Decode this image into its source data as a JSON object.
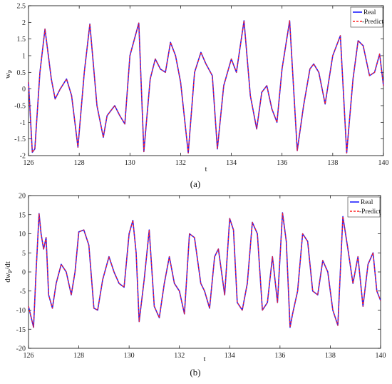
{
  "chart_data": [
    {
      "type": "line",
      "xlabel": "t",
      "ylabel": "w",
      "ylabel_sub": "P",
      "caption": "(a)",
      "xlim": [
        126,
        140
      ],
      "ylim": [
        -2,
        2.5
      ],
      "xticks": [
        "126",
        "128",
        "130",
        "132",
        "134",
        "136",
        "138",
        "140"
      ],
      "yticks": [
        "-2",
        "-1.5",
        "-1",
        "-0.5",
        "0",
        "0.5",
        "1",
        "1.5",
        "2",
        "2.5"
      ],
      "legend_position": "top-right",
      "series": [
        {
          "name": "Real",
          "color": "#1f1fff",
          "dash": "solid"
        },
        {
          "name": "-Predict",
          "color": "#ff2020",
          "dash": "dashed"
        }
      ],
      "x": [
        126.0,
        126.15,
        126.25,
        126.45,
        126.65,
        126.9,
        127.05,
        127.25,
        127.5,
        127.7,
        127.95,
        128.2,
        128.42,
        128.7,
        128.95,
        129.1,
        129.4,
        129.6,
        129.8,
        130.0,
        130.35,
        130.55,
        130.8,
        131.0,
        131.2,
        131.4,
        131.6,
        131.8,
        132.0,
        132.3,
        132.55,
        132.8,
        133.0,
        133.25,
        133.45,
        133.7,
        134.0,
        134.2,
        134.5,
        134.75,
        135.0,
        135.2,
        135.4,
        135.6,
        135.8,
        136.0,
        136.3,
        136.6,
        136.85,
        137.1,
        137.25,
        137.45,
        137.7,
        138.0,
        138.3,
        138.55,
        138.8,
        139.0,
        139.2,
        139.45,
        139.65,
        139.85,
        140.0
      ],
      "y": [
        0.2,
        -1.9,
        -1.8,
        0.5,
        1.8,
        0.3,
        -0.3,
        0.0,
        0.3,
        -0.2,
        -1.75,
        0.5,
        1.95,
        -0.5,
        -1.45,
        -0.8,
        -0.5,
        -0.8,
        -1.05,
        1.0,
        1.98,
        -1.88,
        0.3,
        0.9,
        0.6,
        0.5,
        1.4,
        1.0,
        0.2,
        -1.92,
        0.5,
        1.1,
        0.75,
        0.4,
        -1.8,
        0.1,
        0.9,
        0.5,
        2.05,
        -0.2,
        -1.2,
        -0.1,
        0.1,
        -0.6,
        -1.0,
        0.6,
        2.05,
        -1.85,
        -0.5,
        0.6,
        0.75,
        0.5,
        -0.45,
        1.0,
        1.6,
        -1.92,
        0.3,
        1.45,
        1.3,
        0.4,
        0.5,
        1.05,
        0.1
      ]
    },
    {
      "type": "line",
      "xlabel": "t",
      "ylabel": "dw",
      "ylabel_sub": "P",
      "ylabel_suffix": "/dt",
      "caption": "(b)",
      "xlim": [
        126,
        140
      ],
      "ylim": [
        -20,
        20
      ],
      "xticks": [
        "126",
        "128",
        "130",
        "132",
        "134",
        "136",
        "138",
        "140"
      ],
      "yticks": [
        "-20",
        "-15",
        "-10",
        "-5",
        "0",
        "5",
        "10",
        "15",
        "20"
      ],
      "legend_position": "top-right",
      "series": [
        {
          "name": "Real",
          "color": "#1f1fff",
          "dash": "solid"
        },
        {
          "name": "-Predict",
          "color": "#ff2020",
          "dash": "dashed"
        }
      ],
      "x": [
        126.0,
        126.2,
        126.3,
        126.42,
        126.5,
        126.6,
        126.7,
        126.8,
        126.95,
        127.1,
        127.3,
        127.5,
        127.7,
        127.85,
        128.0,
        128.2,
        128.4,
        128.6,
        128.75,
        128.95,
        129.2,
        129.4,
        129.6,
        129.8,
        130.0,
        130.15,
        130.28,
        130.4,
        130.6,
        130.8,
        131.0,
        131.2,
        131.4,
        131.6,
        131.8,
        132.0,
        132.2,
        132.4,
        132.6,
        132.85,
        133.0,
        133.2,
        133.4,
        133.55,
        133.8,
        134.0,
        134.15,
        134.3,
        134.5,
        134.7,
        134.9,
        135.1,
        135.3,
        135.5,
        135.7,
        135.9,
        136.1,
        136.25,
        136.4,
        136.5,
        136.7,
        136.9,
        137.1,
        137.3,
        137.5,
        137.7,
        137.9,
        138.1,
        138.3,
        138.5,
        138.7,
        138.9,
        139.1,
        139.3,
        139.5,
        139.7,
        139.85,
        140.0
      ],
      "y": [
        -9,
        -14.5,
        0,
        15.3,
        10,
        6,
        9,
        -6,
        -9.5,
        -3,
        2,
        0,
        -6,
        0,
        10.5,
        11,
        7,
        -9.5,
        -10,
        -2,
        4,
        0,
        -3,
        -4,
        10,
        13.5,
        5,
        -13,
        -2,
        11,
        -9,
        -12,
        -3,
        4,
        -3,
        -5,
        -11,
        10,
        9,
        -3,
        -5,
        -9.5,
        4,
        6,
        -6,
        14,
        11,
        -8,
        -10,
        -3,
        13,
        10,
        -10,
        -8,
        4,
        -8,
        15.5,
        8,
        -14.5,
        -11,
        -5,
        10,
        8,
        -5,
        -6,
        3,
        0,
        -10,
        -14,
        14.5,
        6,
        -3,
        4,
        -9,
        2,
        5,
        -5,
        -7.5
      ]
    }
  ]
}
